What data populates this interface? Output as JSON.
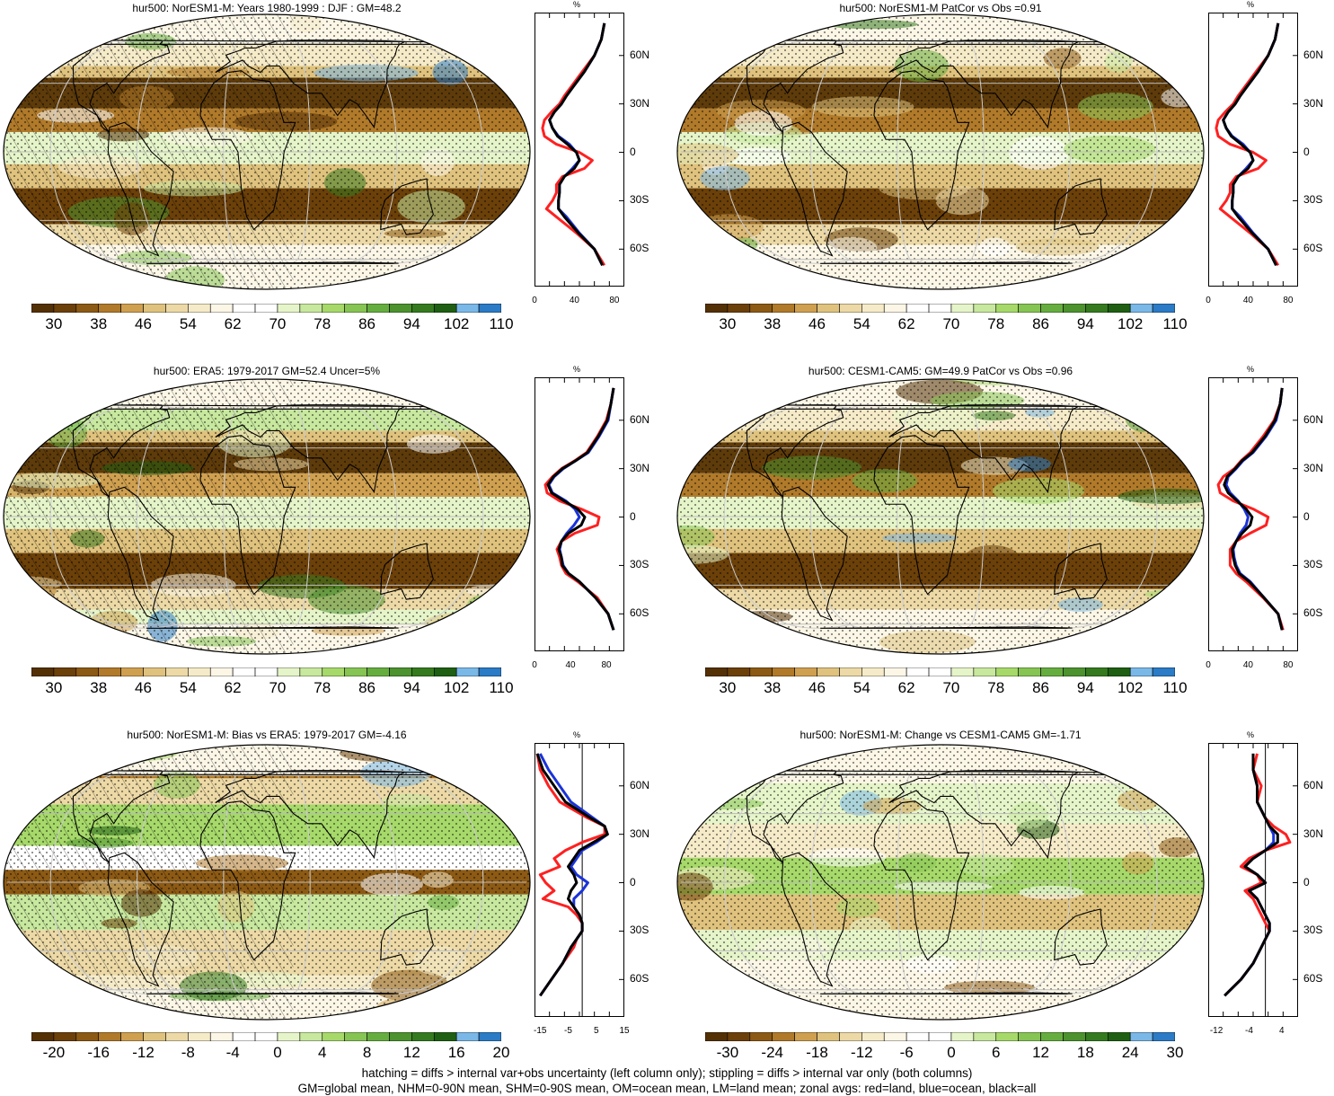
{
  "footer": {
    "line1": "hatching = diffs > internal var+obs uncertainty (left column only); stippling = diffs > internal var only (both columns)",
    "line2": "GM=global mean, NHM=0-90N mean, SHM=0-90S mean, OM=ocean mean, LM=land mean; zonal avgs: red=land, blue=ocean, black=all"
  },
  "colors": {
    "absolute_scale": [
      "#543005",
      "#6b4009",
      "#8c5a14",
      "#b07a2a",
      "#cfa050",
      "#dfc27d",
      "#ecd9a6",
      "#f6ebc8",
      "#fbf6e6",
      "#ffffff",
      "#ffffff",
      "#e6f5c9",
      "#c7e89e",
      "#a6d96a",
      "#86c454",
      "#66ad3f",
      "#4c922e",
      "#357a1f",
      "#1f5f13",
      "#7ab8e8",
      "#2b7bc6"
    ],
    "diff_scale": [
      "#543005",
      "#6b4009",
      "#8c5a14",
      "#b07a2a",
      "#cfa050",
      "#dfc27d",
      "#ecd9a6",
      "#f6ebc8",
      "#fbf6e6",
      "#ffffff",
      "#ffffff",
      "#e6f5c9",
      "#c7e89e",
      "#a6d96a",
      "#86c454",
      "#66ad3f",
      "#4c922e",
      "#357a1f",
      "#1f5f13",
      "#7ab8e8",
      "#2b7bc6"
    ],
    "land": "#ff2020",
    "ocean": "#1a33d9",
    "all": "#000000"
  },
  "chart_data": [
    {
      "type": "heatmap",
      "title": "hur500: NorESM1-M: Years 1980-1999 : DJF : GM=48.2",
      "colorbar_ticks": [
        "30",
        "38",
        "46",
        "54",
        "62",
        "70",
        "78",
        "86",
        "94",
        "102",
        "110"
      ],
      "zonal": {
        "unit": "%",
        "x_ticks": [
          "0",
          "40",
          "80"
        ],
        "xlim": [
          0,
          90
        ],
        "lat_ticks": [
          "60N",
          "30N",
          "0",
          "30S",
          "60S"
        ],
        "lat": [
          80,
          70,
          60,
          50,
          40,
          35,
          30,
          25,
          20,
          15,
          10,
          5,
          0,
          -5,
          -10,
          -15,
          -20,
          -25,
          -30,
          -35,
          -40,
          -50,
          -60,
          -70
        ],
        "land": [
          70,
          67,
          60,
          48,
          36,
          30,
          25,
          17,
          10,
          8,
          10,
          22,
          45,
          58,
          50,
          28,
          22,
          22,
          18,
          12,
          22,
          42,
          60,
          70
        ],
        "ocean": [
          70,
          67,
          60,
          50,
          38,
          32,
          27,
          20,
          15,
          18,
          24,
          35,
          42,
          45,
          38,
          30,
          25,
          25,
          24,
          24,
          32,
          45,
          60,
          68
        ],
        "all": [
          70,
          67,
          60,
          50,
          38,
          32,
          27,
          20,
          15,
          18,
          23,
          33,
          42,
          45,
          40,
          30,
          25,
          25,
          24,
          24,
          30,
          44,
          60,
          68
        ]
      }
    },
    {
      "type": "heatmap",
      "title": "hur500: NorESM1-M PatCor vs Obs =0.91",
      "colorbar_ticks": [
        "30",
        "38",
        "46",
        "54",
        "62",
        "70",
        "78",
        "86",
        "94",
        "102",
        "110"
      ],
      "zonal": {
        "unit": "%",
        "x_ticks": [
          "0",
          "40",
          "80"
        ],
        "xlim": [
          0,
          90
        ],
        "lat_ticks": [
          "60N",
          "30N",
          "0",
          "30S",
          "60S"
        ],
        "lat": [
          80,
          70,
          60,
          50,
          40,
          35,
          30,
          25,
          20,
          15,
          10,
          5,
          0,
          -5,
          -10,
          -15,
          -20,
          -25,
          -30,
          -35,
          -40,
          -50,
          -60,
          -70
        ],
        "land": [
          70,
          67,
          60,
          48,
          36,
          30,
          25,
          17,
          10,
          8,
          10,
          22,
          45,
          58,
          50,
          28,
          22,
          22,
          18,
          12,
          22,
          42,
          60,
          70
        ],
        "ocean": [
          70,
          67,
          60,
          50,
          38,
          32,
          27,
          20,
          15,
          18,
          24,
          35,
          42,
          45,
          38,
          30,
          25,
          25,
          24,
          24,
          32,
          45,
          60,
          68
        ],
        "all": [
          70,
          67,
          60,
          50,
          38,
          32,
          27,
          20,
          15,
          18,
          23,
          33,
          42,
          45,
          40,
          30,
          25,
          25,
          24,
          24,
          30,
          44,
          60,
          68
        ]
      }
    },
    {
      "type": "heatmap",
      "title": "hur500: ERA5: 1979-2017 GM=52.4 Uncer=5%",
      "colorbar_ticks": [
        "30",
        "38",
        "46",
        "54",
        "62",
        "70",
        "78",
        "86",
        "94",
        "102",
        "110"
      ],
      "zonal": {
        "unit": "%",
        "x_ticks": [
          "0",
          "40",
          "80"
        ],
        "xlim": [
          0,
          100
        ],
        "lat_ticks": [
          "60N",
          "30N",
          "0",
          "30S",
          "60S"
        ],
        "lat": [
          80,
          70,
          60,
          50,
          40,
          35,
          30,
          25,
          20,
          15,
          10,
          5,
          0,
          -5,
          -10,
          -15,
          -20,
          -25,
          -30,
          -35,
          -40,
          -50,
          -60,
          -70
        ],
        "land": [
          88,
          85,
          80,
          70,
          58,
          45,
          30,
          20,
          12,
          14,
          28,
          52,
          72,
          70,
          45,
          30,
          25,
          28,
          30,
          35,
          48,
          70,
          82,
          88
        ],
        "ocean": [
          88,
          85,
          82,
          72,
          60,
          46,
          32,
          22,
          16,
          20,
          35,
          45,
          50,
          44,
          36,
          30,
          28,
          30,
          32,
          38,
          50,
          68,
          82,
          88
        ],
        "all": [
          88,
          85,
          81,
          71,
          59,
          46,
          31,
          21,
          15,
          19,
          33,
          48,
          56,
          52,
          38,
          30,
          27,
          30,
          31,
          38,
          50,
          68,
          82,
          88
        ]
      }
    },
    {
      "type": "heatmap",
      "title": "hur500: CESM1-CAM5: GM=49.9 PatCor vs Obs =0.96",
      "colorbar_ticks": [
        "30",
        "38",
        "46",
        "54",
        "62",
        "70",
        "78",
        "86",
        "94",
        "102",
        "110"
      ],
      "zonal": {
        "unit": "%",
        "x_ticks": [
          "0",
          "40",
          "80"
        ],
        "xlim": [
          0,
          90
        ],
        "lat_ticks": [
          "60N",
          "30N",
          "0",
          "30S",
          "60S"
        ],
        "lat": [
          80,
          70,
          60,
          50,
          40,
          35,
          30,
          25,
          20,
          15,
          10,
          5,
          0,
          -5,
          -10,
          -15,
          -20,
          -25,
          -30,
          -35,
          -40,
          -50,
          -60,
          -70
        ],
        "land": [
          74,
          72,
          66,
          55,
          42,
          33,
          26,
          15,
          10,
          12,
          25,
          45,
          60,
          58,
          42,
          28,
          22,
          22,
          22,
          28,
          38,
          55,
          70,
          75
        ],
        "ocean": [
          74,
          72,
          68,
          58,
          45,
          35,
          28,
          20,
          18,
          22,
          30,
          36,
          40,
          38,
          32,
          28,
          25,
          26,
          28,
          32,
          42,
          56,
          70,
          74
        ],
        "all": [
          74,
          72,
          67,
          57,
          44,
          34,
          27,
          19,
          16,
          20,
          29,
          38,
          44,
          42,
          34,
          28,
          24,
          25,
          27,
          31,
          41,
          56,
          70,
          74
        ]
      }
    },
    {
      "type": "heatmap",
      "title": "hur500: NorESM1-M: Bias vs ERA5: 1979-2017 GM=-4.16",
      "colorbar_ticks": [
        "-20",
        "-16",
        "-12",
        "-8",
        "-4",
        "0",
        "4",
        "8",
        "12",
        "16",
        "20"
      ],
      "zonal": {
        "unit": "%",
        "x_ticks": [
          "-15",
          "-5",
          "5",
          "15"
        ],
        "xlim": [
          -17,
          15
        ],
        "lat_ticks": [
          "60N",
          "30N",
          "0",
          "30S",
          "60S"
        ],
        "lat": [
          80,
          70,
          60,
          50,
          40,
          35,
          30,
          25,
          20,
          15,
          10,
          5,
          0,
          -5,
          -10,
          -15,
          -20,
          -25,
          -30,
          -35,
          -40,
          -50,
          -60,
          -70
        ],
        "land": [
          -16,
          -15,
          -12,
          -8,
          2,
          8,
          8,
          0,
          -6,
          -10,
          -8,
          -15,
          -13,
          -10,
          -14,
          -5,
          -2,
          0,
          0,
          -2,
          -3,
          -7,
          -11,
          -15
        ],
        "ocean": [
          -15,
          -12,
          -8,
          -4,
          4,
          8,
          9,
          5,
          0,
          -2,
          -4,
          -2,
          2,
          0,
          -3,
          -3,
          -1,
          0,
          0,
          -2,
          -4,
          -7,
          -11,
          -15
        ],
        "all": [
          -16,
          -14,
          -10,
          -6,
          3,
          8,
          9,
          4,
          -1,
          -3,
          -5,
          -3,
          -2,
          -4,
          -5,
          -3,
          -1,
          0,
          0,
          -2,
          -4,
          -7,
          -11,
          -15
        ]
      }
    },
    {
      "type": "heatmap",
      "title": "hur500: NorESM1-M: Change vs CESM1-CAM5 GM=-1.71",
      "colorbar_ticks": [
        "-30",
        "-24",
        "-18",
        "-12",
        "-6",
        "0",
        "6",
        "12",
        "18",
        "24",
        "30"
      ],
      "zonal": {
        "unit": "%",
        "x_ticks": [
          "-12",
          "-4",
          "4"
        ],
        "xlim": [
          -14,
          8
        ],
        "lat_ticks": [
          "60N",
          "30N",
          "0",
          "30S",
          "60S"
        ],
        "lat": [
          80,
          70,
          60,
          50,
          40,
          35,
          30,
          25,
          20,
          15,
          10,
          5,
          0,
          -5,
          -10,
          -15,
          -20,
          -25,
          -30,
          -35,
          -40,
          -50,
          -60,
          -70
        ],
        "land": [
          -2,
          -3,
          -1,
          -2,
          0,
          2,
          5,
          6,
          0,
          -4,
          -6,
          -2,
          -1,
          -5,
          -3,
          -2,
          -1,
          0,
          1,
          0,
          -1,
          -3,
          -6,
          -10
        ],
        "ocean": [
          -3,
          -3,
          -2,
          -2,
          0,
          1,
          2,
          2,
          0,
          -3,
          -5,
          -2,
          0,
          -4,
          -2,
          -1,
          0,
          1,
          1,
          0,
          -1,
          -3,
          -6,
          -10
        ],
        "all": [
          -3,
          -3,
          -2,
          -2,
          0,
          1,
          3,
          3,
          0,
          -3,
          -5,
          -2,
          0,
          -4,
          -2,
          -1,
          0,
          1,
          1,
          0,
          -1,
          -3,
          -6,
          -10
        ]
      }
    }
  ]
}
